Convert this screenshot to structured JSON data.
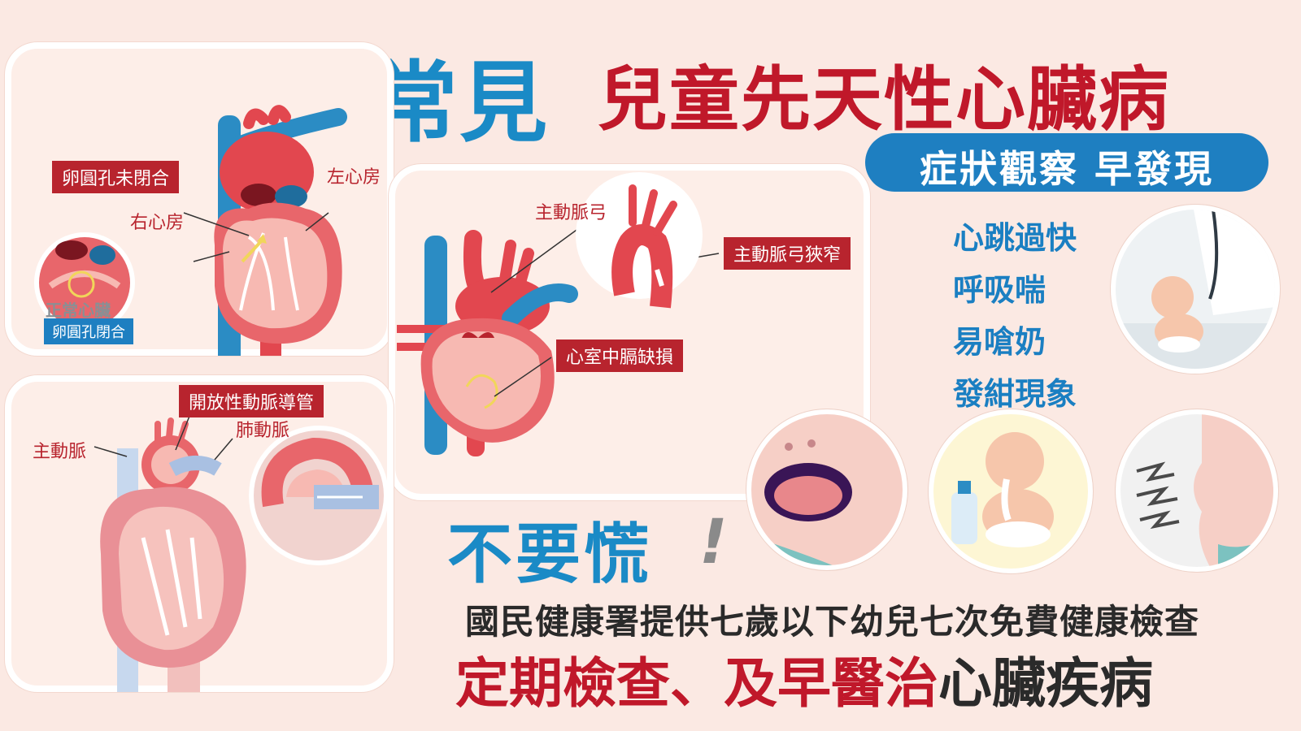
{
  "title": {
    "prefix": "常見",
    "main": "兒童先天性心臟病"
  },
  "subtitle_pill": "症狀觀察 早發現",
  "panel_atrial": {
    "label_defect": "卵圓孔未閉合",
    "label_left_atrium": "左心房",
    "label_right_atrium": "右心房",
    "label_normal": "正常心臟",
    "label_normal_closed": "卵圓孔閉合"
  },
  "panel_aorta": {
    "label_arch": "主動脈弓",
    "label_coarctation": "主動脈弓狹窄",
    "label_vsd": "心室中膈缺損"
  },
  "panel_duct": {
    "label_pda": "開放性動脈導管",
    "label_aorta": "主動脈",
    "label_pulmonary": "肺動脈"
  },
  "symptoms": [
    "心跳過快",
    "呼吸喘",
    "易嗆奶",
    "發紺現象"
  ],
  "bottom": {
    "dont_panic": "不要慌",
    "exclaim": "!",
    "info_line": "國民健康署提供七歲以下幼兒七次免費健康檢查",
    "slogan_red": "定期檢查、及早醫治",
    "slogan_dark": "心臟疾病"
  },
  "icons": [
    "heart-atrial-diagram",
    "heart-vsd-diagram",
    "heart-pda-diagram",
    "doctor-baby-illustration",
    "cyanosis-lips-illustration",
    "baby-choking-milk-illustration",
    "baby-breathing-illustration",
    "milk-bottle-icon"
  ],
  "colors": {
    "accent_blue": "#1a8ac6",
    "accent_red": "#c0182a",
    "background": "#fbe9e3",
    "heart_red": "#e2474f",
    "vessel_blue": "#2b8cc4"
  }
}
